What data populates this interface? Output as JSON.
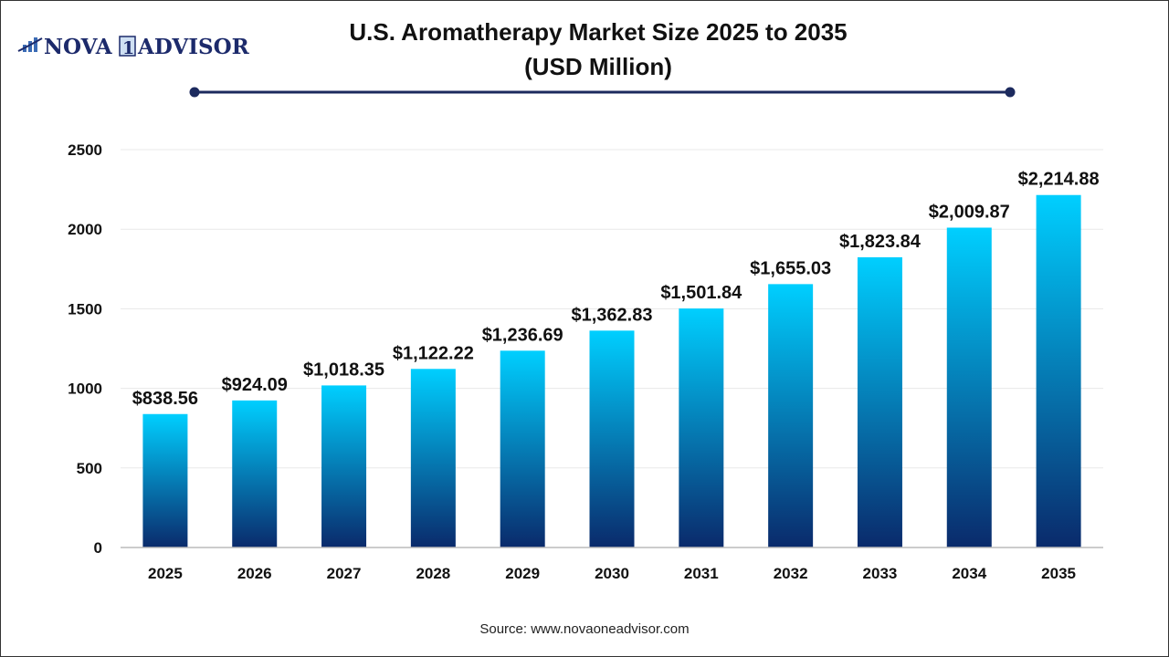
{
  "logo": {
    "left": "NOVA",
    "box": "1",
    "right": "ADVISOR"
  },
  "chart_data": {
    "type": "bar",
    "title": "U.S. Aromatherapy Market Size 2025 to 2035",
    "subtitle": "(USD Million)",
    "categories": [
      "2025",
      "2026",
      "2027",
      "2028",
      "2029",
      "2030",
      "2031",
      "2032",
      "2033",
      "2034",
      "2035"
    ],
    "values": [
      838.56,
      924.09,
      1018.35,
      1122.22,
      1236.69,
      1362.83,
      1501.84,
      1655.03,
      1823.84,
      2009.87,
      2214.88
    ],
    "data_labels": [
      "$838.56",
      "$924.09",
      "$1,018.35",
      "$1,122.22",
      "$1,236.69",
      "$1,362.83",
      "$1,501.84",
      "$1,655.03",
      "$1,823.84",
      "$2,009.87",
      "$2,214.88"
    ],
    "yticks": [
      0,
      500,
      1000,
      1500,
      2000,
      2500
    ],
    "ylim": [
      0,
      2500
    ],
    "grid": true,
    "colors": {
      "bar_top": "#00cfff",
      "bar_bottom": "#0a2a6b",
      "title_line": "#1c2a5e"
    }
  },
  "source": "Source: www.novaoneadvisor.com"
}
